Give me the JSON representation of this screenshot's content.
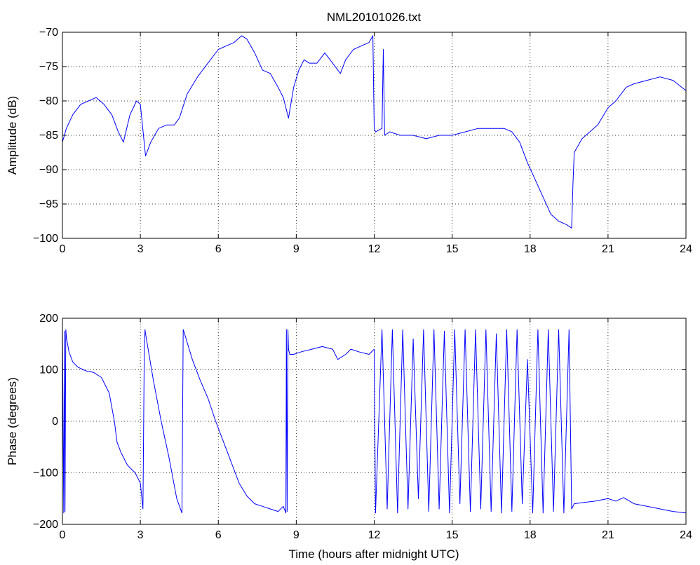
{
  "chart_data": [
    {
      "type": "line",
      "title": "NML20101026.txt",
      "xlabel": "",
      "ylabel": "Amplitude (dB)",
      "xlim": [
        0,
        24
      ],
      "ylim": [
        -100,
        -70
      ],
      "xticks": [
        "0",
        "3",
        "6",
        "9",
        "12",
        "15",
        "18",
        "21",
        "24"
      ],
      "yticks": [
        "-70",
        "-75",
        "-80",
        "-85",
        "-90",
        "-95",
        "-100"
      ],
      "grid": true,
      "series": [
        {
          "color": "#0000ff",
          "x": [
            0,
            0.15,
            0.4,
            0.7,
            1.0,
            1.3,
            1.6,
            1.9,
            2.15,
            2.35,
            2.6,
            2.85,
            3.0,
            3.2,
            3.4,
            3.7,
            4.0,
            4.3,
            4.5,
            4.8,
            5.2,
            5.6,
            6.0,
            6.3,
            6.6,
            6.9,
            7.1,
            7.4,
            7.7,
            8.0,
            8.3,
            8.5,
            8.7,
            8.9,
            9.1,
            9.3,
            9.5,
            9.8,
            10.1,
            10.4,
            10.7,
            10.9,
            11.2,
            11.5,
            11.8,
            11.95,
            12.0,
            12.05,
            12.3,
            12.35,
            12.4,
            12.6,
            13.0,
            13.5,
            14.0,
            14.5,
            15.0,
            15.5,
            16.0,
            16.5,
            17.0,
            17.3,
            17.6,
            17.9,
            18.2,
            18.5,
            18.8,
            19.1,
            19.4,
            19.6,
            19.65,
            19.7,
            20.0,
            20.3,
            20.6,
            21.0,
            21.3,
            21.7,
            22.0,
            22.5,
            23.0,
            23.5,
            24.0
          ],
          "y": [
            -86,
            -84,
            -82,
            -80.5,
            -80,
            -79.5,
            -80.5,
            -82,
            -84.5,
            -86,
            -82,
            -80,
            -80.5,
            -88,
            -86,
            -84,
            -83.5,
            -83.5,
            -82.5,
            -79,
            -76.5,
            -74.5,
            -72.5,
            -72,
            -71.5,
            -70.5,
            -71,
            -73,
            -75.5,
            -76,
            -78,
            -79.5,
            -82.5,
            -78,
            -75.5,
            -74,
            -74.5,
            -74.5,
            -73,
            -74.5,
            -76,
            -74,
            -72.5,
            -72,
            -71.5,
            -70.5,
            -84,
            -84.5,
            -84,
            -72.5,
            -85,
            -84.5,
            -85,
            -85,
            -85.5,
            -85,
            -85,
            -84.5,
            -84,
            -84,
            -84,
            -84.5,
            -86,
            -89,
            -91.5,
            -94,
            -96.5,
            -97.5,
            -98,
            -98.5,
            -92,
            -87.5,
            -85.5,
            -84.5,
            -83.5,
            -81,
            -80,
            -78,
            -77.5,
            -77,
            -76.5,
            -77,
            -78.5
          ]
        }
      ]
    },
    {
      "type": "line",
      "title": "",
      "xlabel": "Time (hours after midnight UTC)",
      "ylabel": "Phase (degrees)",
      "xlim": [
        0,
        24
      ],
      "ylim": [
        -200,
        200
      ],
      "xticks": [
        "0",
        "3",
        "6",
        "9",
        "12",
        "15",
        "18",
        "21",
        "24"
      ],
      "yticks": [
        "200",
        "100",
        "0",
        "-100",
        "-200"
      ],
      "grid": true,
      "series": [
        {
          "color": "#0000ff",
          "x": [
            0,
            0.05,
            0.08,
            0.1,
            0.13,
            0.16,
            0.2,
            0.25,
            0.4,
            0.6,
            0.9,
            1.2,
            1.5,
            1.8,
            2.0,
            2.1,
            2.25,
            2.5,
            2.8,
            3.0,
            3.1,
            3.15,
            3.18,
            3.2,
            3.5,
            3.8,
            4.1,
            4.4,
            4.6,
            4.65,
            4.67,
            4.7,
            5.0,
            5.3,
            5.6,
            5.9,
            6.2,
            6.5,
            6.8,
            7.1,
            7.4,
            7.7,
            8.0,
            8.3,
            8.5,
            8.6,
            8.62,
            8.65,
            8.68,
            8.7,
            8.75,
            8.9,
            9.2,
            9.6,
            10.0,
            10.4,
            10.6,
            10.9,
            11.1,
            11.4,
            11.8,
            12.0,
            12.05,
            12.3,
            12.5,
            12.7,
            12.9,
            13.1,
            13.3,
            13.5,
            13.7,
            13.9,
            14.1,
            14.3,
            14.5,
            14.7,
            14.9,
            15.1,
            15.3,
            15.5,
            15.7,
            15.9,
            16.1,
            16.3,
            16.5,
            16.7,
            16.9,
            17.1,
            17.3,
            17.5,
            17.7,
            17.9,
            18.1,
            18.3,
            18.5,
            18.7,
            18.9,
            19.1,
            19.3,
            19.5,
            19.6,
            19.7,
            20.0,
            20.5,
            21.0,
            21.3,
            21.6,
            22.0,
            22.5,
            23.0,
            23.5,
            24.0
          ],
          "y": [
            180,
            -178,
            175,
            -175,
            178,
            160,
            150,
            135,
            115,
            105,
            98,
            95,
            85,
            55,
            0,
            -40,
            -60,
            -85,
            -100,
            -120,
            -170,
            140,
            178,
            170,
            80,
            0,
            -70,
            -150,
            -178,
            178,
            175,
            170,
            120,
            80,
            45,
            0,
            -40,
            -80,
            -120,
            -145,
            -160,
            -165,
            -170,
            -175,
            -165,
            -178,
            178,
            -175,
            178,
            140,
            130,
            130,
            135,
            140,
            145,
            140,
            120,
            130,
            140,
            135,
            130,
            140,
            -178,
            178,
            -170,
            178,
            -178,
            178,
            -170,
            160,
            -150,
            178,
            -175,
            178,
            -170,
            175,
            -178,
            178,
            -160,
            178,
            -175,
            178,
            -170,
            178,
            -175,
            170,
            -178,
            178,
            -175,
            178,
            -160,
            120,
            -178,
            178,
            -178,
            178,
            -175,
            178,
            -178,
            178,
            -170,
            -160,
            -158,
            -155,
            -150,
            -155,
            -148,
            -160,
            -165,
            -170,
            -175,
            -178
          ]
        }
      ]
    }
  ]
}
